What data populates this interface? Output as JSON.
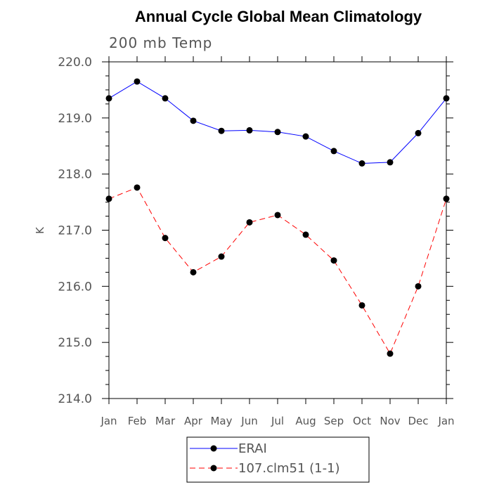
{
  "chart_data": {
    "type": "line",
    "title": "Annual Cycle Global Mean Climatology",
    "subtitle": "200 mb Temp",
    "xlabel": "",
    "ylabel": "K",
    "ylim": [
      214.0,
      220.0
    ],
    "yticks": [
      "214.0",
      "215.0",
      "216.0",
      "217.0",
      "218.0",
      "219.0",
      "220.0"
    ],
    "categories": [
      "Jan",
      "Feb",
      "Mar",
      "Apr",
      "May",
      "Jun",
      "Jul",
      "Aug",
      "Sep",
      "Oct",
      "Nov",
      "Dec",
      "Jan"
    ],
    "series": [
      {
        "name": "ERAI",
        "color": "#0000ff",
        "dash": "solid",
        "values": [
          219.35,
          219.65,
          219.35,
          218.95,
          218.77,
          218.78,
          218.75,
          218.67,
          218.41,
          218.19,
          218.21,
          218.73,
          219.35
        ]
      },
      {
        "name": "107.clm51 (1-1)",
        "color": "#ff0000",
        "dash": "dashed",
        "values": [
          217.56,
          217.76,
          216.86,
          216.25,
          216.53,
          217.14,
          217.27,
          216.92,
          216.46,
          215.66,
          214.8,
          216.0,
          217.56
        ]
      }
    ],
    "legend_position": "bottom-center",
    "grid": false
  }
}
